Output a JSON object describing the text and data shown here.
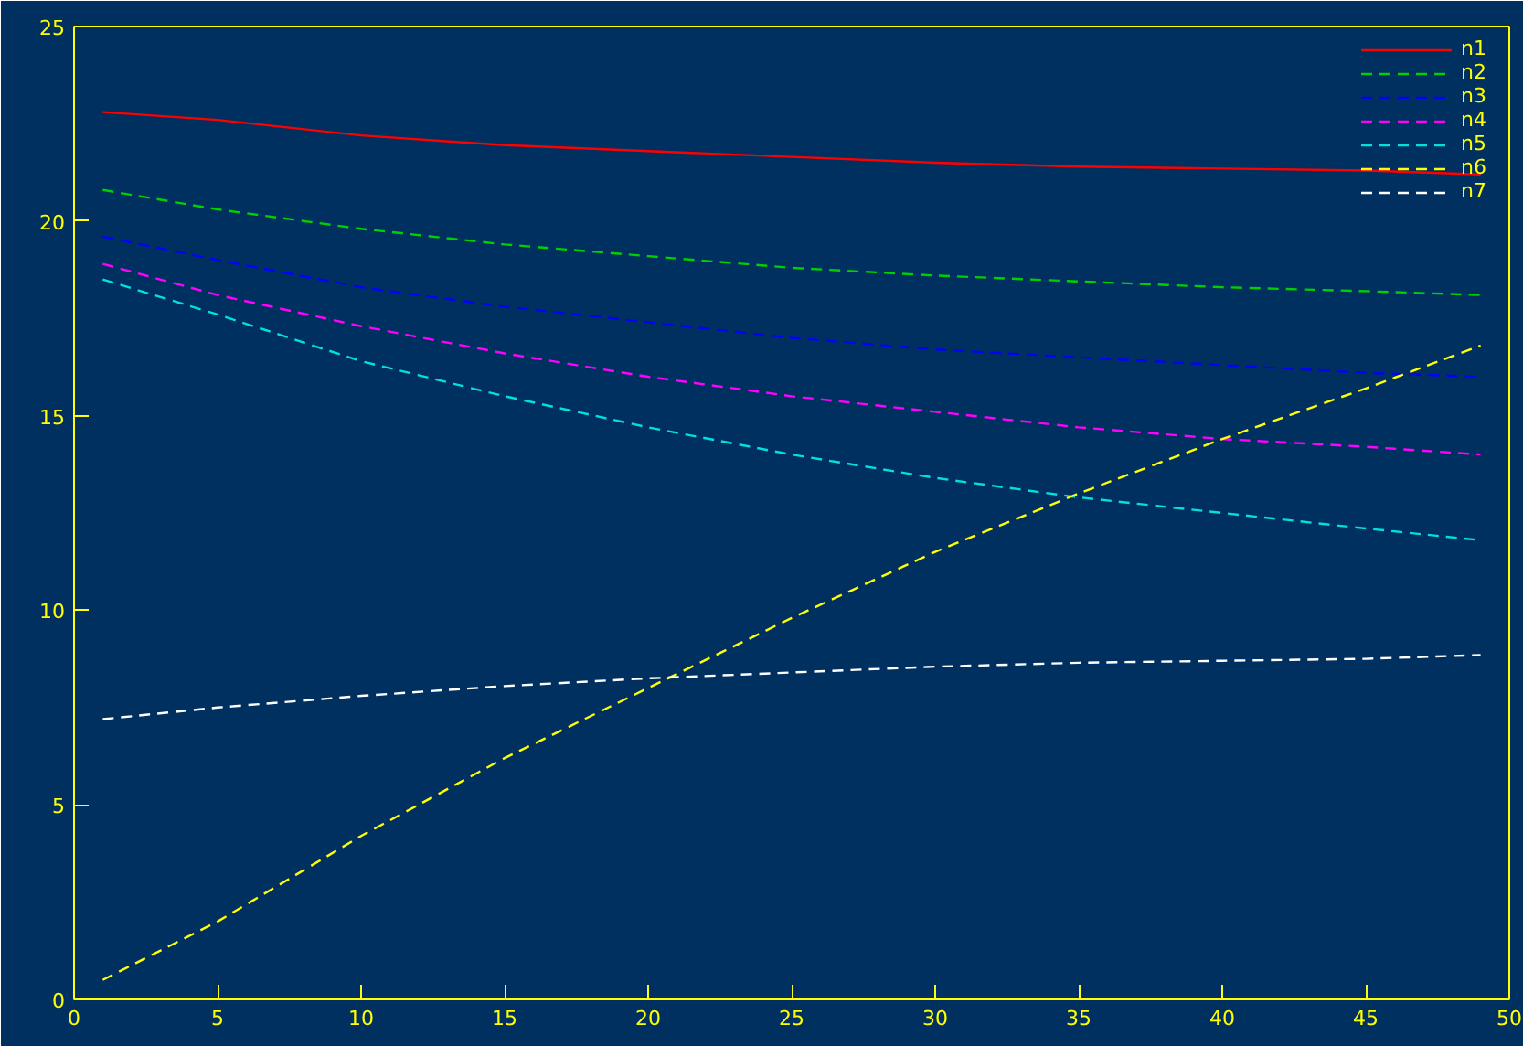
{
  "chart_data": {
    "type": "line",
    "x": [
      1,
      5,
      10,
      15,
      20,
      25,
      30,
      35,
      40,
      45,
      49
    ],
    "xlim": [
      0,
      50
    ],
    "xticks": [
      0,
      5,
      10,
      15,
      20,
      25,
      30,
      35,
      40,
      45,
      50
    ],
    "ylim": [
      0,
      25
    ],
    "yticks": [
      0,
      5,
      10,
      15,
      20,
      25
    ],
    "grid": false,
    "legend": "top right",
    "marker": "none",
    "series": [
      {
        "name": "n1",
        "color": "#ff0000",
        "line_style": "solid",
        "values": [
          22.8,
          22.6,
          22.2,
          21.95,
          21.8,
          21.65,
          21.5,
          21.4,
          21.35,
          21.3,
          21.2
        ]
      },
      {
        "name": "n2",
        "color": "#00d000",
        "line_style": "dashed",
        "values": [
          20.8,
          20.3,
          19.8,
          19.4,
          19.1,
          18.8,
          18.6,
          18.45,
          18.3,
          18.2,
          18.1
        ]
      },
      {
        "name": "n3",
        "color": "#0000ff",
        "line_style": "dashed",
        "values": [
          19.6,
          19.0,
          18.3,
          17.8,
          17.4,
          17.0,
          16.7,
          16.5,
          16.3,
          16.1,
          16.0
        ]
      },
      {
        "name": "n4",
        "color": "#ff00ff",
        "line_style": "dashed",
        "values": [
          18.9,
          18.1,
          17.3,
          16.6,
          16.0,
          15.5,
          15.1,
          14.7,
          14.4,
          14.2,
          14.0
        ]
      },
      {
        "name": "n5",
        "color": "#00e0e0",
        "line_style": "dashed",
        "values": [
          18.5,
          17.6,
          16.4,
          15.5,
          14.7,
          14.0,
          13.4,
          12.9,
          12.5,
          12.1,
          11.8
        ]
      },
      {
        "name": "n6",
        "color": "#ffff00",
        "line_style": "dashed",
        "values": [
          0.5,
          2.0,
          4.2,
          6.2,
          8.0,
          9.8,
          11.5,
          13.0,
          14.4,
          15.7,
          16.8
        ]
      },
      {
        "name": "n7",
        "color": "#ffffff",
        "line_style": "dashed",
        "values": [
          7.2,
          7.5,
          7.8,
          8.05,
          8.25,
          8.4,
          8.55,
          8.65,
          8.7,
          8.75,
          8.85
        ]
      }
    ]
  }
}
